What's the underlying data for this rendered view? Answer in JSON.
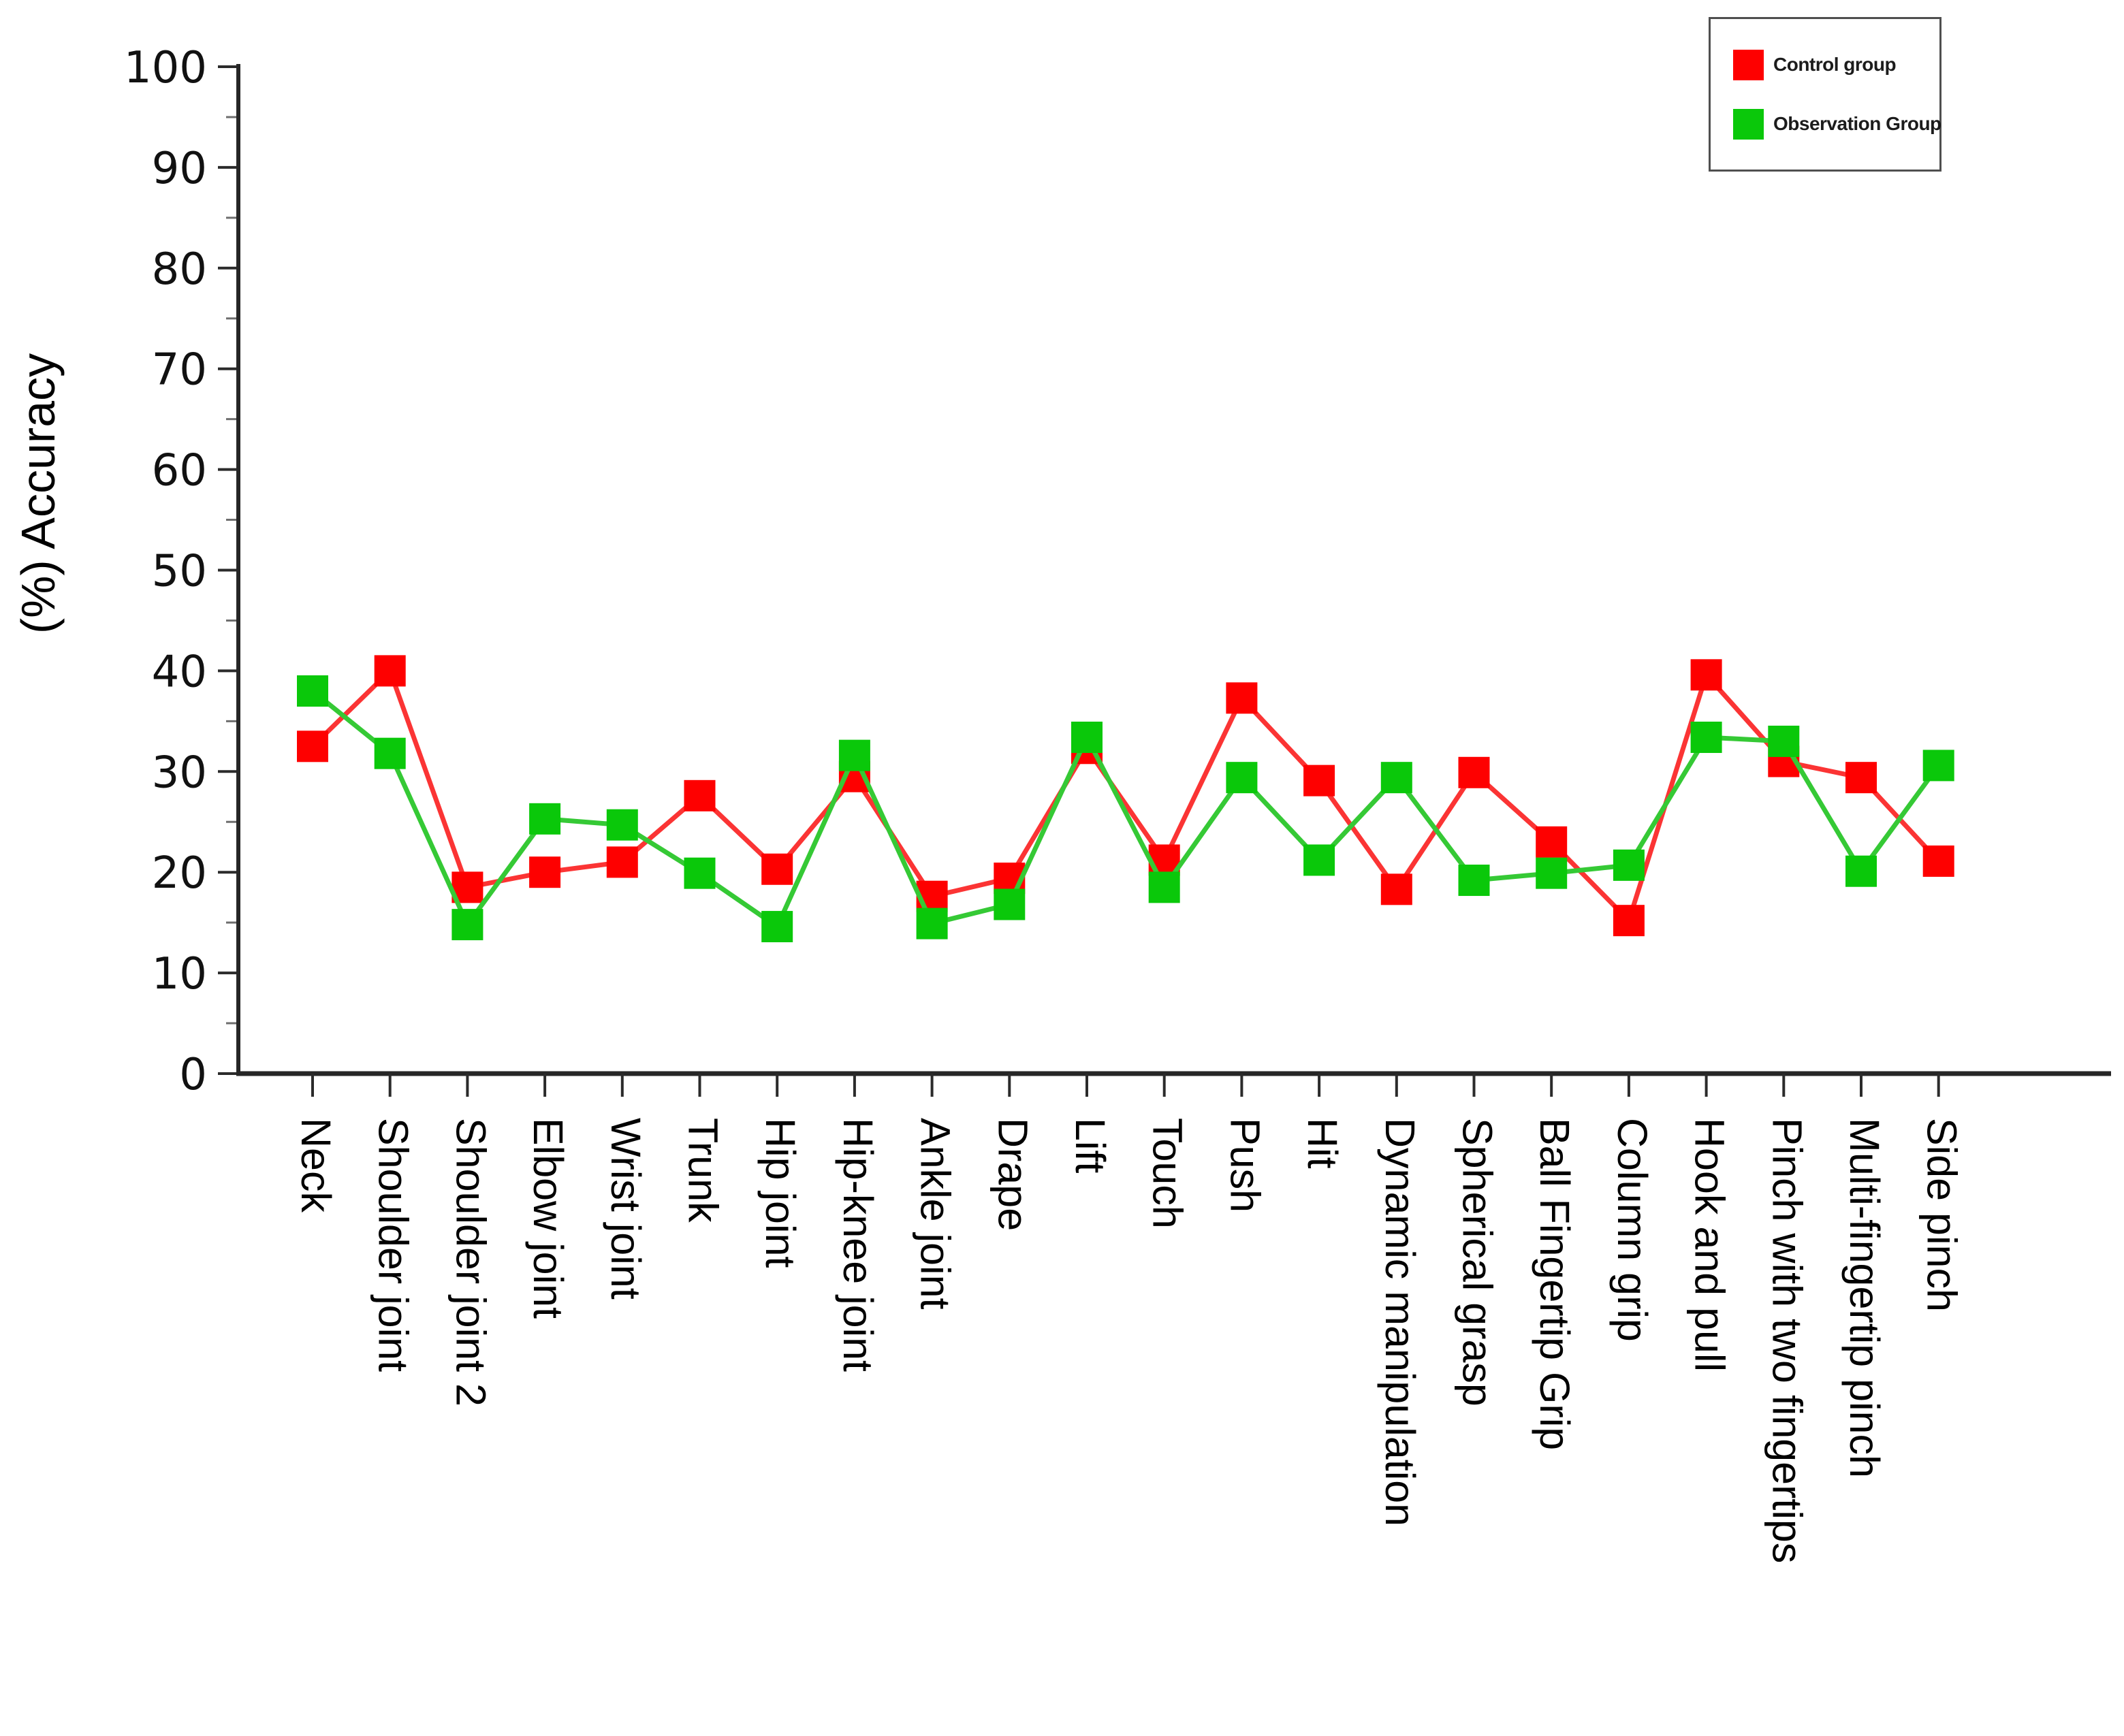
{
  "chart_data": {
    "type": "line",
    "title": "",
    "ylabel": "(%)  Accuracy",
    "xlabel": "",
    "ylim": [
      0,
      100
    ],
    "y_tick_step": 10,
    "y_minor_tick_step": 5,
    "grid": false,
    "legend_position": "top-right",
    "categories": [
      "Neck",
      "Shoulder joint",
      "Shoulder joint 2",
      "Elbow joint",
      "Wrist joint",
      "Trunk",
      "Hip joint",
      "Hip-knee joint",
      "Ankle joint",
      "Drape",
      "Lift",
      "Touch",
      "Push",
      "Hit",
      "Dynamic manipulation",
      "Spherical grasp",
      "Ball Fingertip Grip",
      "Column grip",
      "Hook and pull",
      "Pinch with two fingertips",
      "Multi-fingertip pinch",
      "Side pinch"
    ],
    "series": [
      {
        "name": "Control group",
        "marker": "square",
        "color": "#fe0000",
        "line_color": "#fb3434",
        "values": [
          32.5,
          40.0,
          18.5,
          20.0,
          21.0,
          27.6,
          20.3,
          29.5,
          17.6,
          19.4,
          32.3,
          21.2,
          37.3,
          29.1,
          18.3,
          29.9,
          23.0,
          15.2,
          39.6,
          31.0,
          29.4,
          21.1
        ]
      },
      {
        "name": "Observation Group",
        "marker": "square",
        "color": "#0ac80a",
        "line_color": "#35c935",
        "values": [
          38.0,
          31.8,
          14.8,
          25.3,
          24.7,
          19.9,
          14.6,
          31.6,
          14.9,
          16.8,
          33.4,
          18.5,
          29.4,
          21.2,
          29.4,
          19.2,
          19.9,
          20.7,
          33.4,
          33.0,
          20.1,
          30.6
        ]
      }
    ]
  },
  "legend": {
    "control_label": "Control group",
    "observation_label": "Observation Group"
  }
}
